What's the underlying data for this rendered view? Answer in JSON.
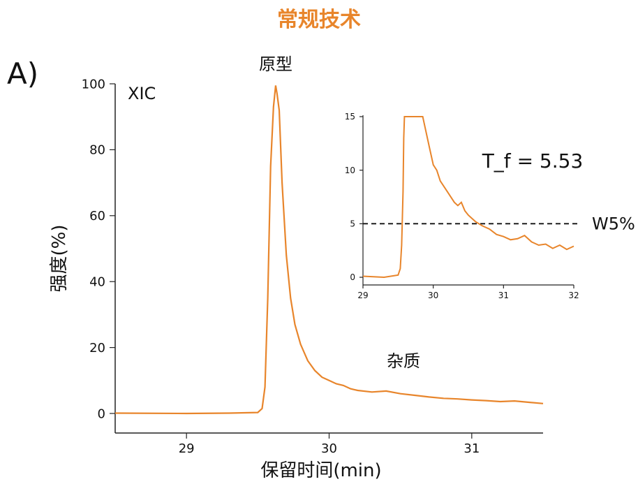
{
  "title": "常规技术",
  "panel_label": "A)",
  "colors": {
    "accent": "#e8852b",
    "axis": "#222222",
    "text": "#111111"
  },
  "chart_data": [
    {
      "type": "line",
      "annotation": "XIC",
      "peak_label": "原型",
      "impurity_label": "杂质",
      "xlabel": "保留时间(min)",
      "ylabel": "强度(%)",
      "xlim": [
        28.5,
        31.5
      ],
      "ylim": [
        0,
        100
      ],
      "xticks": [
        29,
        30,
        31
      ],
      "yticks": [
        0,
        20,
        40,
        60,
        80,
        100
      ],
      "x": [
        28.5,
        29.0,
        29.3,
        29.5,
        29.53,
        29.55,
        29.57,
        29.59,
        29.61,
        29.625,
        29.635,
        29.65,
        29.67,
        29.7,
        29.73,
        29.76,
        29.8,
        29.85,
        29.9,
        29.95,
        30.0,
        30.05,
        30.1,
        30.15,
        30.2,
        30.3,
        30.4,
        30.5,
        30.6,
        30.7,
        30.8,
        30.9,
        31.0,
        31.1,
        31.2,
        31.3,
        31.4,
        31.5
      ],
      "y": [
        0.1,
        0.0,
        0.1,
        0.3,
        1.5,
        8,
        35,
        75,
        93,
        99.5,
        97,
        92,
        70,
        48,
        35,
        27,
        21,
        16,
        13,
        11,
        10,
        9,
        8.5,
        7.5,
        7,
        6.5,
        6.8,
        6,
        5.5,
        5,
        4.6,
        4.4,
        4.1,
        3.9,
        3.6,
        3.8,
        3.4,
        3.0
      ]
    },
    {
      "type": "line",
      "annotation": "T_f = 5.53",
      "reference_line": {
        "y": 5,
        "style": "dashed",
        "label": "W5%"
      },
      "xlim": [
        29,
        32
      ],
      "ylim": [
        0,
        15
      ],
      "xticks": [
        29,
        30,
        31,
        32
      ],
      "yticks": [
        0,
        5,
        10,
        15
      ],
      "x": [
        29.0,
        29.3,
        29.5,
        29.53,
        29.55,
        29.57,
        29.58,
        29.59,
        29.85,
        29.9,
        29.95,
        30.0,
        30.05,
        30.1,
        30.2,
        30.3,
        30.35,
        30.4,
        30.45,
        30.5,
        30.6,
        30.7,
        30.8,
        30.9,
        31.0,
        31.1,
        31.2,
        31.3,
        31.4,
        31.5,
        31.6,
        31.7,
        31.8,
        31.9,
        32.0
      ],
      "y": [
        0.1,
        0.0,
        0.2,
        0.8,
        3,
        8,
        13,
        15,
        15,
        13.5,
        12,
        10.5,
        10,
        9,
        8,
        7,
        6.7,
        7,
        6.2,
        5.8,
        5.2,
        4.8,
        4.5,
        4.0,
        3.8,
        3.5,
        3.6,
        3.9,
        3.3,
        3.0,
        3.1,
        2.7,
        3.0,
        2.6,
        2.9
      ]
    }
  ]
}
